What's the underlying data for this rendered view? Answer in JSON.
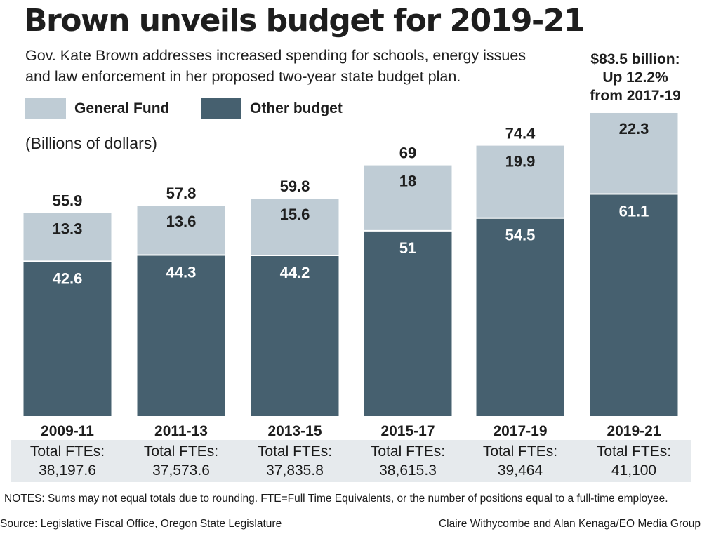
{
  "title": "Brown unveils budget for 2019-21",
  "subtitle": "Gov. Kate Brown addresses increased spending for schools, energy issues and law enforcement in her proposed two-year state budget plan.",
  "units": "(Billions of dollars)",
  "callout": [
    "$83.5 billion:",
    "Up 12.2%",
    "from 2017-19"
  ],
  "colors": {
    "general_fund": "#bfccd5",
    "other_budget": "#46606f",
    "fte_box": "#e6eaed"
  },
  "chart_data": {
    "type": "bar",
    "stacked": true,
    "categories": [
      "2009-11",
      "2011-13",
      "2013-15",
      "2015-17",
      "2017-19",
      "2019-21"
    ],
    "series": [
      {
        "name": "Other budget",
        "values": [
          42.6,
          44.3,
          44.2,
          51,
          54.5,
          61.1
        ]
      },
      {
        "name": "General Fund",
        "values": [
          13.3,
          13.6,
          15.6,
          18,
          19.9,
          22.3
        ]
      }
    ],
    "totals": [
      "55.9",
      "57.8",
      "59.8",
      "69",
      "74.4",
      null
    ],
    "series_labels": {
      "Other budget": [
        "42.6",
        "44.3",
        "44.2",
        "51",
        "54.5",
        "61.1"
      ],
      "General Fund": [
        "13.3",
        "13.6",
        "15.6",
        "18",
        "19.9",
        "22.3"
      ]
    },
    "legend": [
      "General Fund",
      "Other budget"
    ],
    "legend_position": "top-left",
    "ylim": [
      0,
      90
    ],
    "grid": false
  },
  "fte": {
    "label": "Total FTEs:",
    "values": [
      "38,197.6",
      "37,573.6",
      "37,835.8",
      "38,615.3",
      "39,464",
      "41,100"
    ]
  },
  "notes": "NOTES: Sums may not equal totals due to rounding. FTE=Full Time Equivalents, or the number of positions equal to a full-time employee.",
  "source": "Source: Legislative Fiscal Office, Oregon State Legislature",
  "credit": "Claire Withycombe and Alan Kenaga/EO Media Group"
}
